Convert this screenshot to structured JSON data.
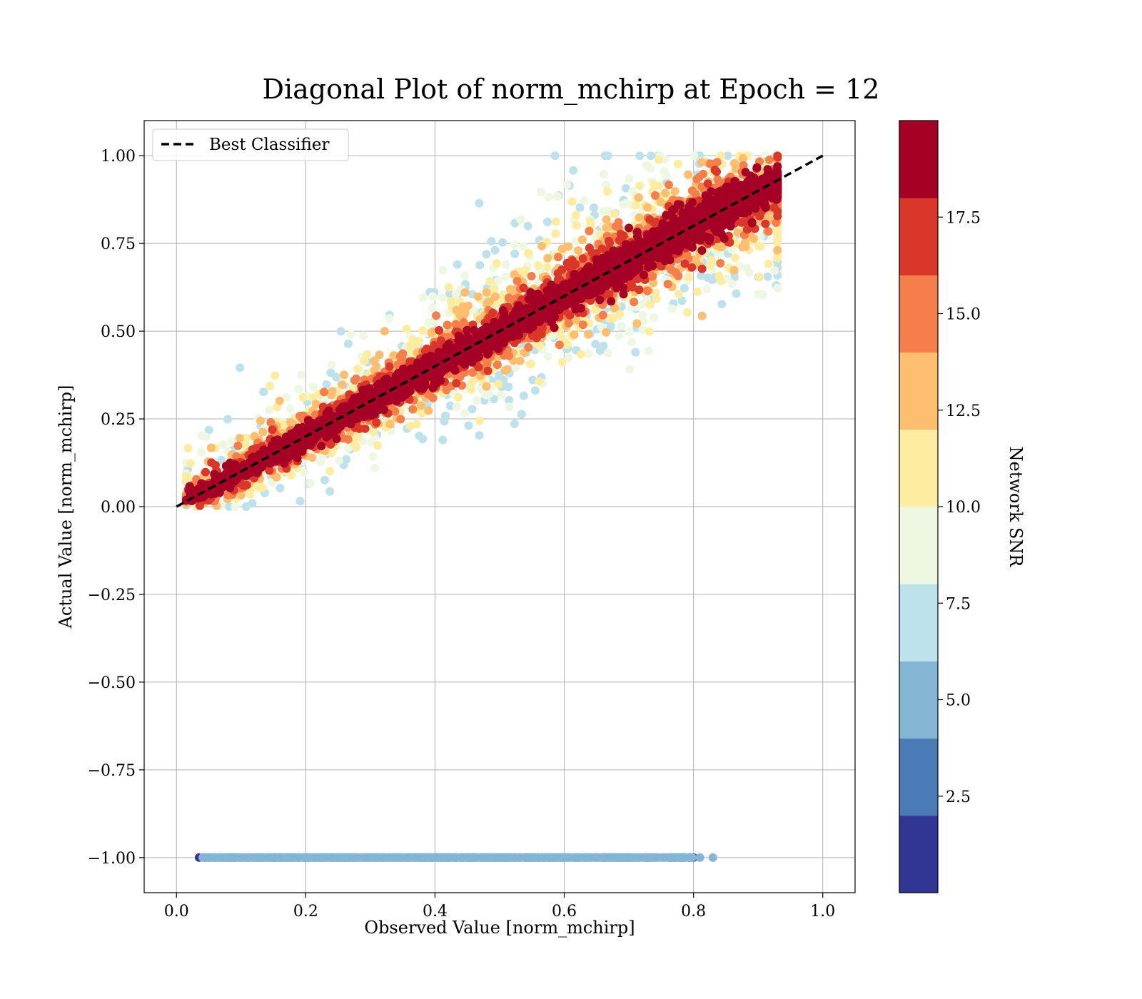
{
  "chart_data": {
    "type": "scatter",
    "title": "Diagonal Plot of norm_mchirp at Epoch = 12",
    "xlabel": "Observed Value [norm_mchirp]",
    "ylabel": "Actual Value [norm_mchirp]",
    "xlim": [
      -0.05,
      1.05
    ],
    "ylim": [
      -1.1,
      1.1
    ],
    "xticks": [
      0.0,
      0.2,
      0.4,
      0.6,
      0.8,
      1.0
    ],
    "xtick_labels": [
      "0.0",
      "0.2",
      "0.4",
      "0.6",
      "0.8",
      "1.0"
    ],
    "yticks": [
      1.0,
      0.75,
      0.5,
      0.25,
      0.0,
      -0.25,
      -0.5,
      -0.75,
      -1.0
    ],
    "ytick_labels": [
      "1.00",
      "0.75",
      "0.50",
      "0.25",
      "0.00",
      "−0.25",
      "−0.50",
      "−0.75",
      "−1.00"
    ],
    "grid": true,
    "legend": {
      "placement": "top-left",
      "entries": [
        {
          "label": "Best Classifier",
          "style": "dashed",
          "color": "#000000"
        }
      ]
    },
    "reference_line": {
      "label": "Best Classifier",
      "x": [
        0.0,
        1.0
      ],
      "y": [
        0.0,
        1.0
      ]
    },
    "scatter_structure": {
      "diagonal_band": {
        "x_range": [
          0.02,
          0.93
        ],
        "y_equals_x_with_spread": true
      },
      "rejected_row": {
        "y": -1.0,
        "x_range": [
          0.035,
          0.83
        ]
      }
    },
    "colorbar": {
      "label": "Network SNR",
      "range": [
        0.0,
        20.0
      ],
      "ticks": [
        2.5,
        5.0,
        7.5,
        10.0,
        12.5,
        15.0,
        17.5
      ],
      "tick_labels": [
        "2.5",
        "5.0",
        "7.5",
        "10.0",
        "12.5",
        "15.0",
        "17.5"
      ],
      "levels": [
        {
          "from": 0.0,
          "to": 2.0,
          "color": "#313695"
        },
        {
          "from": 2.0,
          "to": 4.0,
          "color": "#4a7bb7"
        },
        {
          "from": 4.0,
          "to": 6.0,
          "color": "#84b5d5"
        },
        {
          "from": 6.0,
          "to": 8.0,
          "color": "#bde2ec"
        },
        {
          "from": 8.0,
          "to": 10.0,
          "color": "#eef7e1"
        },
        {
          "from": 10.0,
          "to": 12.0,
          "color": "#feeda1"
        },
        {
          "from": 12.0,
          "to": 14.0,
          "color": "#fdbe70"
        },
        {
          "from": 14.0,
          "to": 16.0,
          "color": "#f67e4b"
        },
        {
          "from": 16.0,
          "to": 18.0,
          "color": "#da372a"
        },
        {
          "from": 18.0,
          "to": 20.0,
          "color": "#a50026"
        }
      ]
    }
  }
}
